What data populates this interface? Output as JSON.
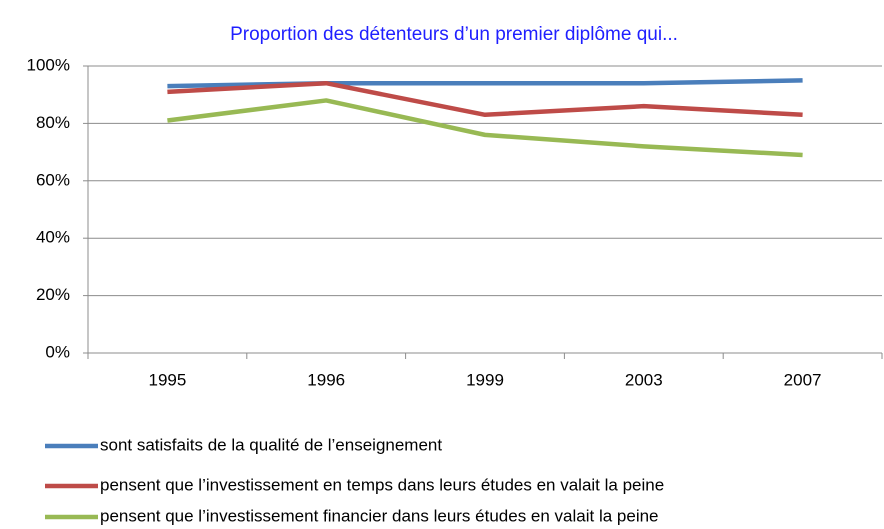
{
  "chart_data": {
    "type": "line",
    "title": "Proportion des détenteurs d’un premier diplôme qui...",
    "categories": [
      "1995",
      "1996",
      "1999",
      "2003",
      "2007"
    ],
    "series": [
      {
        "name": "sont satisfaits de la qualité de l’enseignement",
        "color": "#4a7ebb",
        "values": [
          93,
          94,
          94,
          94,
          95
        ]
      },
      {
        "name": "pensent que l’investissement en temps dans leurs études en valait la peine",
        "color": "#be4b48",
        "values": [
          91,
          94,
          83,
          86,
          83
        ]
      },
      {
        "name": "pensent que l’investissement financier dans leurs études en valait la peine",
        "color": "#98b954",
        "values": [
          81,
          88,
          76,
          72,
          69
        ]
      }
    ],
    "ylim": [
      0,
      100
    ],
    "yticks": [
      {
        "value": 0,
        "label": "0%"
      },
      {
        "value": 20,
        "label": "20%"
      },
      {
        "value": 40,
        "label": "40%"
      },
      {
        "value": 60,
        "label": "60%"
      },
      {
        "value": 80,
        "label": "80%"
      },
      {
        "value": 100,
        "label": "100%"
      }
    ],
    "grid": true
  }
}
